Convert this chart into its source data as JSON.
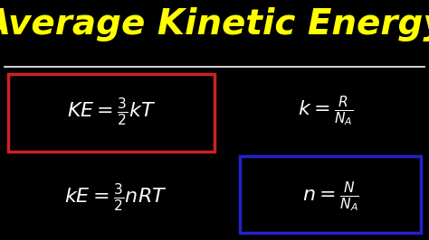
{
  "background_color": "#000000",
  "title": "Average Kinetic Energy",
  "title_color": "#FFFF00",
  "title_fontsize": 28,
  "separator_color": "#FFFFFF",
  "formula_color": "#FFFFFF",
  "box1_color": "#CC2222",
  "box2_color": "#2222CC",
  "figsize": [
    4.74,
    2.66
  ],
  "dpi": 100
}
